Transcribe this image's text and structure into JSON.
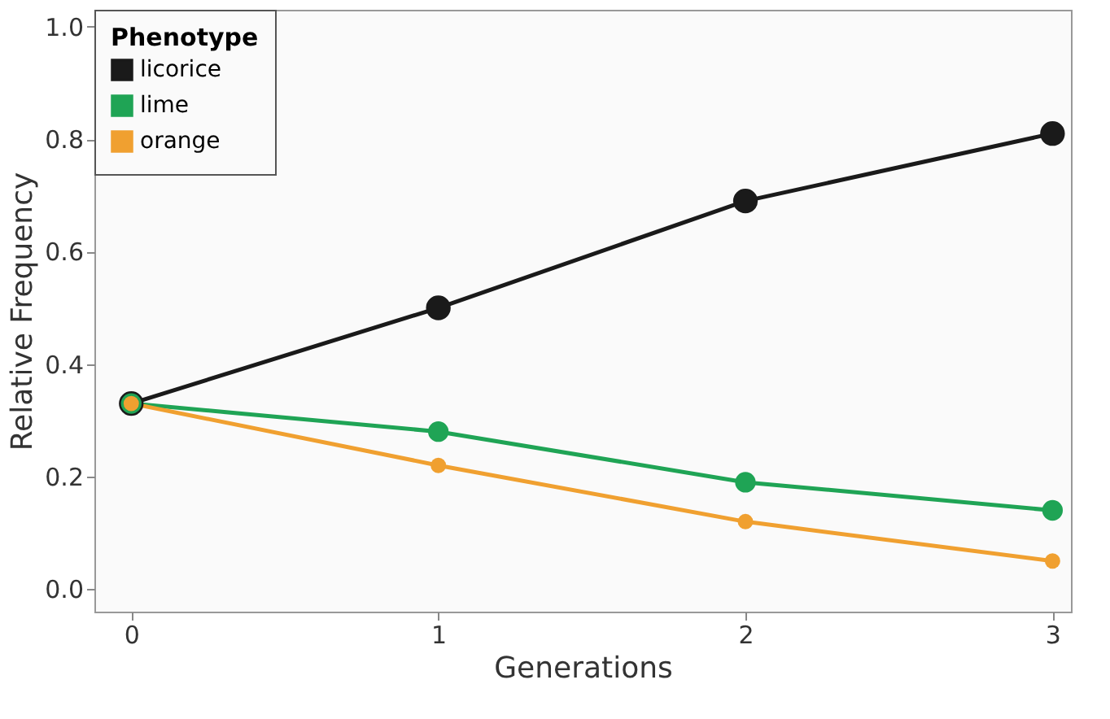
{
  "chart_data": {
    "type": "line",
    "xlabel": "Generations",
    "ylabel": "Relative Frequency",
    "legend_title": "Phenotype",
    "x": [
      0,
      1,
      2,
      3
    ],
    "series": [
      {
        "name": "licorice",
        "color": "#1a1a1a",
        "values": [
          0.33,
          0.5,
          0.69,
          0.81
        ]
      },
      {
        "name": "lime",
        "color": "#1fa455",
        "values": [
          0.33,
          0.28,
          0.19,
          0.14
        ]
      },
      {
        "name": "orange",
        "color": "#f0a030",
        "values": [
          0.33,
          0.22,
          0.12,
          0.05
        ]
      }
    ],
    "xlim": [
      -0.12,
      3.06
    ],
    "xticks": [
      0,
      1,
      2,
      3
    ],
    "ylim": [
      -0.04,
      1.03
    ],
    "yticks": [
      {
        "value": 0,
        "label": "0.0"
      },
      {
        "value": 0.2,
        "label": "0.2"
      },
      {
        "value": 0.4,
        "label": "0.4"
      },
      {
        "value": 0.6,
        "label": "0.6"
      },
      {
        "value": 0.8,
        "label": "0.8"
      },
      {
        "value": 1,
        "label": "1.0"
      }
    ],
    "grid": false,
    "legend": "top left",
    "marker": "circle",
    "line_style": "solid"
  }
}
